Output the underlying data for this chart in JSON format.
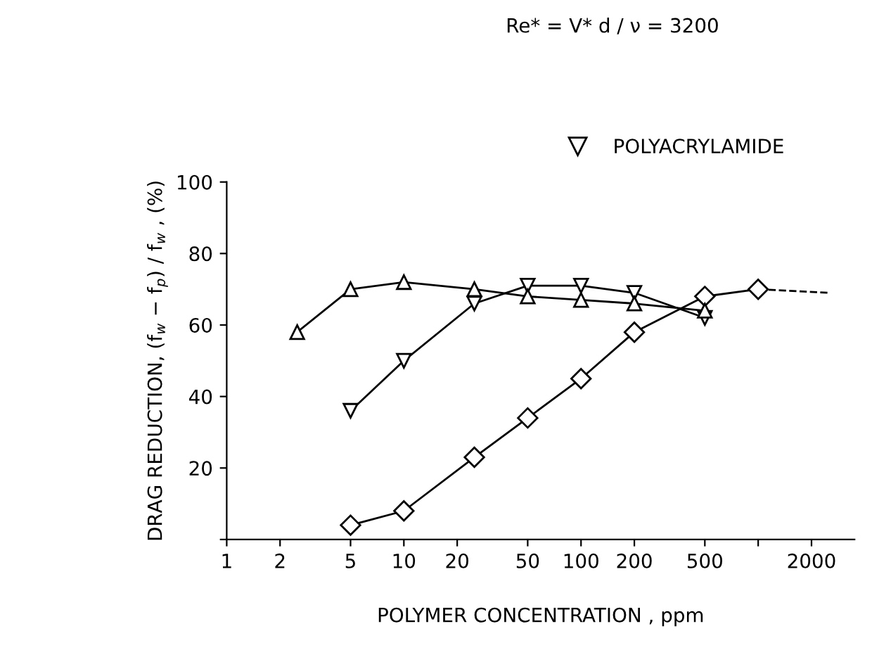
{
  "chart_data": {
    "type": "line",
    "xlabel": "POLYMER CONCENTRATION , ppm",
    "ylabel": "DRAG REDUCTION, (f$_{w}$ − f$_{p}$) / f$_{w}$ , (%)",
    "annotations": [
      "Re* = V* d / ν = 3200"
    ],
    "log": "x",
    "xlim": [
      1,
      3500
    ],
    "ylim": [
      0,
      100
    ],
    "xticks": [
      1,
      2,
      5,
      10,
      20,
      50,
      100,
      200,
      500,
      {
        "value": 1000,
        "label": null
      },
      2000
    ],
    "yticks": [
      {
        "value": 0,
        "label": null
      },
      20,
      40,
      60,
      80,
      100
    ],
    "grid": false,
    "legend": "top right",
    "series": [
      {
        "color": "#000000",
        "marker": "triangle",
        "x": [
          2.5,
          5,
          10,
          25,
          50,
          100,
          200,
          500
        ],
        "values": [
          58,
          70,
          72,
          70,
          68,
          67,
          66,
          64
        ]
      },
      {
        "name": "POLYACRYLAMIDE",
        "color": "#000000",
        "marker": "triangle_down",
        "x": [
          5,
          10,
          25,
          50,
          100,
          200,
          500
        ],
        "values": [
          36,
          50,
          66,
          71,
          71,
          69,
          62
        ]
      },
      {
        "color": "#000000",
        "marker": "diamond",
        "x": [
          5,
          10,
          25,
          50,
          100,
          200,
          500,
          1000
        ],
        "values": [
          4,
          8,
          23,
          34,
          45,
          58,
          68,
          70
        ]
      },
      {
        "color": "#000000",
        "marker": "none",
        "line_style": "dashed",
        "x": [
          1000,
          2500
        ],
        "values": [
          70,
          69
        ]
      }
    ]
  }
}
